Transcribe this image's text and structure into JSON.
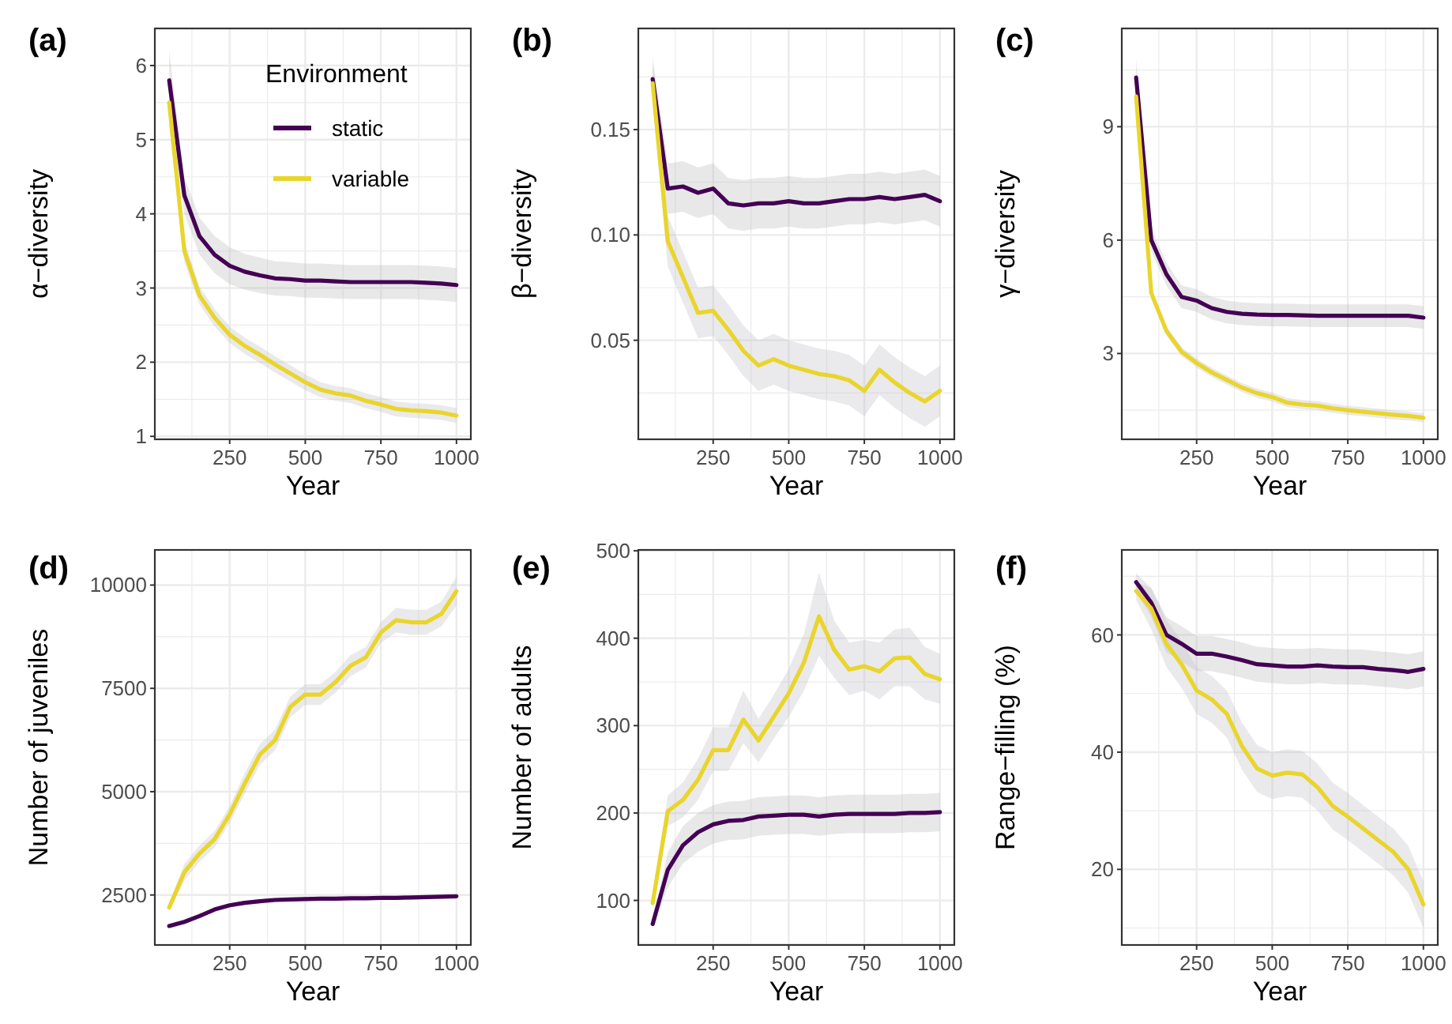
{
  "chart_data": [
    {
      "type": "line",
      "title": "(a)",
      "xlabel": "Year",
      "ylabel": "α−diversity",
      "legend": "top right",
      "legend_title": "Environment",
      "grid": true,
      "x": [
        50,
        100,
        150,
        200,
        250,
        300,
        350,
        400,
        450,
        500,
        550,
        600,
        650,
        700,
        750,
        800,
        850,
        900,
        950,
        1000
      ],
      "xlim": [
        2.5,
        1047.5
      ],
      "xticks": [
        250,
        500,
        750,
        1000
      ],
      "ylim": [
        0.96,
        6.5
      ],
      "yticks": [
        1,
        2,
        3,
        4,
        5,
        6
      ],
      "series": [
        {
          "name": "static",
          "color": "#440154",
          "values": [
            5.8,
            4.25,
            3.7,
            3.45,
            3.3,
            3.22,
            3.17,
            3.13,
            3.12,
            3.1,
            3.1,
            3.09,
            3.08,
            3.08,
            3.08,
            3.08,
            3.08,
            3.07,
            3.06,
            3.04
          ],
          "lower": [
            5.4,
            4.0,
            3.45,
            3.2,
            3.05,
            2.98,
            2.93,
            2.9,
            2.89,
            2.87,
            2.87,
            2.86,
            2.85,
            2.85,
            2.85,
            2.85,
            2.85,
            2.84,
            2.83,
            2.81
          ],
          "upper": [
            6.2,
            4.5,
            3.95,
            3.7,
            3.55,
            3.46,
            3.41,
            3.36,
            3.35,
            3.33,
            3.33,
            3.32,
            3.31,
            3.31,
            3.31,
            3.31,
            3.31,
            3.3,
            3.29,
            3.27
          ]
        },
        {
          "name": "variable",
          "color": "#e9d52b",
          "values": [
            5.5,
            3.5,
            2.9,
            2.6,
            2.37,
            2.22,
            2.1,
            1.97,
            1.85,
            1.73,
            1.63,
            1.58,
            1.55,
            1.48,
            1.43,
            1.37,
            1.35,
            1.34,
            1.32,
            1.28
          ],
          "lower": [
            5.2,
            3.35,
            2.78,
            2.48,
            2.26,
            2.11,
            1.99,
            1.86,
            1.74,
            1.62,
            1.53,
            1.48,
            1.45,
            1.38,
            1.33,
            1.27,
            1.25,
            1.24,
            1.22,
            1.18
          ],
          "upper": [
            5.8,
            3.65,
            3.02,
            2.72,
            2.48,
            2.33,
            2.21,
            2.08,
            1.96,
            1.84,
            1.73,
            1.68,
            1.65,
            1.58,
            1.53,
            1.47,
            1.45,
            1.44,
            1.42,
            1.38
          ]
        }
      ]
    },
    {
      "type": "line",
      "title": "(b)",
      "xlabel": "Year",
      "ylabel": "β−diversity",
      "grid": true,
      "x": [
        50,
        100,
        150,
        200,
        250,
        300,
        350,
        400,
        450,
        500,
        550,
        600,
        650,
        700,
        750,
        800,
        850,
        900,
        950,
        1000
      ],
      "xlim": [
        2.5,
        1047.5
      ],
      "xticks": [
        250,
        500,
        750,
        1000
      ],
      "ylim": [
        0.003,
        0.198
      ],
      "yticks": [
        0.05,
        {
          "value": 0.1,
          "label": "0.10"
        },
        0.15
      ],
      "series": [
        {
          "color": "#440154",
          "values": [
            0.174,
            0.122,
            0.123,
            0.12,
            0.122,
            0.115,
            0.114,
            0.115,
            0.115,
            0.116,
            0.115,
            0.115,
            0.116,
            0.117,
            0.117,
            0.118,
            0.117,
            0.118,
            0.119,
            0.116
          ],
          "lower": [
            0.164,
            0.11,
            0.111,
            0.108,
            0.11,
            0.103,
            0.102,
            0.103,
            0.103,
            0.104,
            0.103,
            0.103,
            0.104,
            0.105,
            0.105,
            0.106,
            0.105,
            0.106,
            0.107,
            0.104
          ],
          "upper": [
            0.184,
            0.134,
            0.135,
            0.132,
            0.134,
            0.127,
            0.126,
            0.127,
            0.127,
            0.128,
            0.127,
            0.127,
            0.128,
            0.129,
            0.129,
            0.13,
            0.129,
            0.13,
            0.131,
            0.128
          ]
        },
        {
          "color": "#e9d52b",
          "values": [
            0.172,
            0.097,
            0.08,
            0.063,
            0.064,
            0.055,
            0.045,
            0.038,
            0.041,
            0.038,
            0.036,
            0.034,
            0.033,
            0.031,
            0.026,
            0.036,
            0.03,
            0.025,
            0.021,
            0.026
          ],
          "lower": [
            0.162,
            0.085,
            0.068,
            0.051,
            0.052,
            0.043,
            0.033,
            0.026,
            0.029,
            0.026,
            0.024,
            0.022,
            0.021,
            0.019,
            0.014,
            0.024,
            0.018,
            0.013,
            0.009,
            0.014
          ],
          "upper": [
            0.182,
            0.109,
            0.092,
            0.075,
            0.076,
            0.067,
            0.057,
            0.05,
            0.053,
            0.05,
            0.048,
            0.046,
            0.045,
            0.043,
            0.038,
            0.048,
            0.042,
            0.037,
            0.033,
            0.038
          ]
        }
      ]
    },
    {
      "type": "line",
      "title": "(c)",
      "xlabel": "Year",
      "ylabel": "γ−diversity",
      "grid": true,
      "x": [
        50,
        100,
        150,
        200,
        250,
        300,
        350,
        400,
        450,
        500,
        550,
        600,
        650,
        700,
        750,
        800,
        850,
        900,
        950,
        1000
      ],
      "xlim": [
        2.5,
        1047.5
      ],
      "xticks": [
        250,
        500,
        750,
        1000
      ],
      "ylim": [
        0.73,
        11.6
      ],
      "yticks": [
        3,
        6,
        9
      ],
      "series": [
        {
          "color": "#440154",
          "values": [
            10.3,
            6.0,
            5.1,
            4.5,
            4.4,
            4.2,
            4.1,
            4.05,
            4.03,
            4.02,
            4.02,
            4.01,
            4.0,
            4.0,
            4.0,
            4.0,
            4.0,
            4.0,
            4.0,
            3.95
          ],
          "lower": [
            9.8,
            5.7,
            4.8,
            4.2,
            4.1,
            3.9,
            3.8,
            3.75,
            3.73,
            3.72,
            3.72,
            3.71,
            3.7,
            3.7,
            3.7,
            3.7,
            3.7,
            3.7,
            3.7,
            3.65
          ],
          "upper": [
            10.8,
            6.3,
            5.4,
            4.8,
            4.7,
            4.5,
            4.4,
            4.35,
            4.33,
            4.32,
            4.32,
            4.31,
            4.3,
            4.3,
            4.3,
            4.3,
            4.3,
            4.3,
            4.3,
            4.25
          ]
        },
        {
          "color": "#e9d52b",
          "values": [
            9.8,
            4.6,
            3.6,
            3.05,
            2.75,
            2.5,
            2.3,
            2.1,
            1.95,
            1.85,
            1.7,
            1.65,
            1.62,
            1.55,
            1.5,
            1.46,
            1.42,
            1.38,
            1.35,
            1.3
          ],
          "lower": [
            9.4,
            4.45,
            3.48,
            2.93,
            2.63,
            2.38,
            2.18,
            1.98,
            1.83,
            1.73,
            1.58,
            1.53,
            1.5,
            1.43,
            1.38,
            1.34,
            1.3,
            1.26,
            1.23,
            1.18
          ],
          "upper": [
            10.2,
            4.75,
            3.72,
            3.17,
            2.87,
            2.62,
            2.42,
            2.22,
            2.07,
            1.97,
            1.82,
            1.77,
            1.74,
            1.67,
            1.62,
            1.58,
            1.54,
            1.5,
            1.47,
            1.42
          ]
        }
      ]
    },
    {
      "type": "line",
      "title": "(d)",
      "xlabel": "Year",
      "ylabel": "Number of juveniles",
      "grid": true,
      "x": [
        50,
        100,
        150,
        200,
        250,
        300,
        350,
        400,
        450,
        500,
        550,
        600,
        650,
        700,
        750,
        800,
        850,
        900,
        950,
        1000
      ],
      "xlim": [
        2.5,
        1047.5
      ],
      "xticks": [
        250,
        500,
        750,
        1000
      ],
      "ylim": [
        1290,
        10850
      ],
      "yticks": [
        2500,
        5000,
        7500,
        10000
      ],
      "series": [
        {
          "color": "#440154",
          "values": [
            1750,
            1850,
            1990,
            2150,
            2250,
            2310,
            2350,
            2380,
            2390,
            2400,
            2410,
            2410,
            2420,
            2420,
            2430,
            2430,
            2440,
            2450,
            2460,
            2470
          ],
          "lower": [
            1700,
            1800,
            1940,
            2100,
            2200,
            2260,
            2300,
            2330,
            2340,
            2350,
            2360,
            2360,
            2370,
            2370,
            2380,
            2380,
            2390,
            2400,
            2410,
            2420
          ],
          "upper": [
            1800,
            1900,
            2040,
            2200,
            2300,
            2360,
            2400,
            2430,
            2440,
            2450,
            2460,
            2460,
            2470,
            2470,
            2480,
            2480,
            2490,
            2500,
            2510,
            2520
          ]
        },
        {
          "color": "#e9d52b",
          "values": [
            2200,
            3050,
            3500,
            3850,
            4450,
            5200,
            5900,
            6250,
            7050,
            7350,
            7350,
            7650,
            8050,
            8250,
            8850,
            9150,
            9100,
            9100,
            9300,
            9850
          ],
          "lower": [
            2100,
            2850,
            3300,
            3650,
            4250,
            4950,
            5650,
            6000,
            6800,
            7100,
            7100,
            7400,
            7800,
            8000,
            8600,
            8850,
            8800,
            8800,
            9000,
            9500
          ],
          "upper": [
            2300,
            3250,
            3700,
            4050,
            4650,
            5450,
            6150,
            6500,
            7300,
            7600,
            7600,
            7900,
            8300,
            8500,
            9100,
            9450,
            9400,
            9400,
            9600,
            10200
          ]
        }
      ]
    },
    {
      "type": "line",
      "title": "(e)",
      "xlabel": "Year",
      "ylabel": "Number of adults",
      "grid": true,
      "x": [
        50,
        100,
        150,
        200,
        250,
        300,
        350,
        400,
        450,
        500,
        550,
        600,
        650,
        700,
        750,
        800,
        850,
        900,
        950,
        1000
      ],
      "xlim": [
        2.5,
        1047.5
      ],
      "xticks": [
        250,
        500,
        750,
        1000
      ],
      "ylim": [
        49,
        501
      ],
      "yticks": [
        100,
        200,
        300,
        400,
        500
      ],
      "series": [
        {
          "color": "#440154",
          "values": [
            73,
            135,
            163,
            178,
            187,
            191,
            192,
            196,
            197,
            198,
            198,
            196,
            198,
            199,
            199,
            199,
            199,
            200,
            200,
            201
          ],
          "lower": [
            68,
            115,
            142,
            156,
            165,
            169,
            170,
            174,
            175,
            176,
            176,
            174,
            176,
            177,
            177,
            177,
            177,
            178,
            178,
            179
          ],
          "upper": [
            78,
            155,
            185,
            200,
            209,
            213,
            214,
            218,
            219,
            220,
            220,
            218,
            220,
            221,
            221,
            221,
            221,
            222,
            222,
            223
          ]
        },
        {
          "color": "#e9d52b",
          "values": [
            97,
            202,
            215,
            238,
            272,
            272,
            307,
            283,
            310,
            337,
            372,
            425,
            387,
            364,
            368,
            362,
            377,
            378,
            359,
            353
          ],
          "lower": [
            90,
            185,
            195,
            215,
            248,
            248,
            280,
            258,
            285,
            310,
            340,
            380,
            355,
            335,
            340,
            330,
            345,
            345,
            330,
            325
          ],
          "upper": [
            105,
            220,
            235,
            262,
            298,
            298,
            340,
            308,
            335,
            365,
            405,
            475,
            420,
            395,
            398,
            395,
            410,
            412,
            390,
            382
          ]
        }
      ]
    },
    {
      "type": "line",
      "title": "(f)",
      "xlabel": "Year",
      "ylabel": "Range−filling (%)",
      "grid": true,
      "x": [
        50,
        100,
        150,
        200,
        250,
        300,
        350,
        400,
        450,
        500,
        550,
        600,
        650,
        700,
        750,
        800,
        850,
        900,
        950,
        1000
      ],
      "xlim": [
        2.5,
        1047.5
      ],
      "xticks": [
        250,
        500,
        750,
        1000
      ],
      "ylim": [
        7.1,
        74.5
      ],
      "yticks": [
        20,
        40,
        60
      ],
      "series": [
        {
          "color": "#440154",
          "values": [
            69,
            65.5,
            60,
            58.5,
            56.8,
            56.8,
            56.3,
            55.7,
            55,
            54.8,
            54.6,
            54.6,
            54.8,
            54.6,
            54.5,
            54.5,
            54.2,
            54,
            53.7,
            54.2
          ],
          "lower": [
            67.5,
            63,
            57,
            55.5,
            53.8,
            53.8,
            53.3,
            52.7,
            52,
            51.8,
            51.6,
            51.6,
            51.8,
            51.6,
            51.5,
            51.5,
            51.2,
            51,
            50.7,
            51.2
          ],
          "upper": [
            70.5,
            68,
            63,
            61.5,
            59.8,
            59.8,
            59.3,
            58.7,
            58,
            57.8,
            57.6,
            57.6,
            57.8,
            57.6,
            57.5,
            57.5,
            57.2,
            57,
            56.7,
            57.2
          ]
        },
        {
          "color": "#e9d52b",
          "values": [
            67.5,
            64.5,
            58.5,
            55,
            50.5,
            49,
            46.5,
            41,
            37.2,
            36,
            36.5,
            36.2,
            34,
            30.8,
            29,
            27,
            25,
            23,
            20,
            14
          ],
          "lower": [
            66,
            61,
            54.5,
            51,
            46.5,
            45,
            42.5,
            37,
            33.2,
            32,
            32.5,
            32.2,
            30,
            26.8,
            25,
            23,
            21,
            19,
            16,
            10
          ],
          "upper": [
            69,
            68,
            62.5,
            59,
            54.5,
            53,
            50.5,
            45,
            41.2,
            40,
            40.5,
            40.2,
            38,
            34.8,
            33,
            31,
            29,
            27,
            24,
            18
          ]
        }
      ]
    }
  ]
}
